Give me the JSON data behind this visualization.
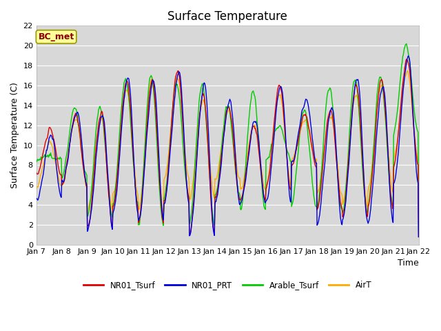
{
  "title": "Surface Temperature",
  "xlabel": "Time",
  "ylabel": "Surface Temperature (C)",
  "ylim": [
    0,
    22
  ],
  "annotation": "BC_met",
  "legend": [
    "NR01_Tsurf",
    "NR01_PRT",
    "Arable_Tsurf",
    "AirT"
  ],
  "colors": [
    "#dd0000",
    "#0000dd",
    "#00cc00",
    "#ffaa00"
  ],
  "background_color": "#d8d8d8",
  "grid_color": "#ffffff",
  "xtick_labels": [
    "Jan 7",
    "Jan 8",
    "Jan 9",
    "Jan 10",
    "Jan 11",
    "Jan 12",
    "Jan 13",
    "Jan 14",
    "Jan 15",
    "Jan 16",
    "Jan 17",
    "Jan 18",
    "Jan 19",
    "Jan 20",
    "Jan 21",
    "Jan 22"
  ],
  "ytick_values": [
    0,
    2,
    4,
    6,
    8,
    10,
    12,
    14,
    16,
    18,
    20,
    22
  ],
  "n_days": 15,
  "points_per_day": 48
}
